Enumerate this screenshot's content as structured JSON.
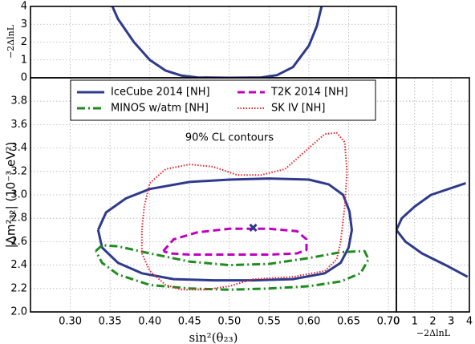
{
  "chart_data": [
    {
      "type": "contour",
      "xlabel": "sin²(θ₂₃)",
      "ylabel": "|Δm²₃₂| (10⁻³ eV²)",
      "annotation": "90% CL contours",
      "xlim": [
        0.25,
        0.71
      ],
      "ylim": [
        2.0,
        4.0
      ],
      "xticks": [
        {
          "value": 0.3,
          "label": "0.30"
        },
        0.35,
        {
          "value": 0.4,
          "label": "0.40"
        },
        0.45,
        {
          "value": 0.5,
          "label": "0.50"
        },
        0.55,
        {
          "value": 0.6,
          "label": "0.60"
        },
        0.65,
        {
          "value": 0.7,
          "label": "0.70"
        }
      ],
      "yticks": [
        {
          "value": 2,
          "label": "2.0"
        },
        2.2,
        2.4,
        2.6,
        2.8,
        {
          "value": 3,
          "label": "3.0"
        },
        3.2,
        3.4,
        3.6,
        3.8
      ],
      "grid": true,
      "legend": "upper center",
      "series": [
        {
          "name": "IceCube 2014 [NH]",
          "color": "#2e3a8c",
          "style": "solid",
          "x": [
            0.335,
            0.345,
            0.37,
            0.4,
            0.45,
            0.5,
            0.55,
            0.6,
            0.625,
            0.643,
            0.651,
            0.654,
            0.65,
            0.64,
            0.62,
            0.58,
            0.53,
            0.48,
            0.43,
            0.39,
            0.36,
            0.34,
            0.335
          ],
          "y": [
            2.7,
            2.85,
            2.97,
            3.05,
            3.11,
            3.13,
            3.14,
            3.13,
            3.09,
            3.0,
            2.86,
            2.7,
            2.55,
            2.42,
            2.33,
            2.28,
            2.27,
            2.27,
            2.28,
            2.33,
            2.42,
            2.55,
            2.7
          ]
        },
        {
          "name": "T2K 2014 [NH]",
          "color": "#c000c0",
          "style": "dashed",
          "x": [
            0.417,
            0.43,
            0.46,
            0.5,
            0.55,
            0.585,
            0.597,
            0.597,
            0.585,
            0.55,
            0.5,
            0.45,
            0.425,
            0.417
          ],
          "y": [
            2.52,
            2.62,
            2.68,
            2.71,
            2.71,
            2.69,
            2.62,
            2.53,
            2.5,
            2.49,
            2.49,
            2.49,
            2.5,
            2.52
          ]
        },
        {
          "name": "MINOS w/atm [NH]",
          "color": "#1e8c1e",
          "style": "dashdot",
          "x": [
            0.332,
            0.34,
            0.36,
            0.4,
            0.45,
            0.5,
            0.55,
            0.6,
            0.64,
            0.67,
            0.675,
            0.665,
            0.64,
            0.6,
            0.55,
            0.5,
            0.45,
            0.4,
            0.36,
            0.34,
            0.332
          ],
          "y": [
            2.52,
            2.57,
            2.56,
            2.5,
            2.43,
            2.4,
            2.41,
            2.46,
            2.51,
            2.52,
            2.45,
            2.33,
            2.26,
            2.22,
            2.2,
            2.19,
            2.2,
            2.23,
            2.32,
            2.42,
            2.52
          ]
        },
        {
          "name": "SK IV [NH]",
          "color": "#e8202a",
          "style": "dotted",
          "x": [
            0.39,
            0.393,
            0.4,
            0.42,
            0.45,
            0.48,
            0.51,
            0.54,
            0.57,
            0.6,
            0.62,
            0.635,
            0.645,
            0.648,
            0.645,
            0.64,
            0.635,
            0.62,
            0.58,
            0.53,
            0.5,
            0.47,
            0.44,
            0.42,
            0.4,
            0.39,
            0.39
          ],
          "y": [
            2.7,
            2.9,
            3.1,
            3.22,
            3.26,
            3.24,
            3.17,
            3.17,
            3.22,
            3.4,
            3.52,
            3.53,
            3.45,
            3.2,
            2.9,
            2.6,
            2.45,
            2.35,
            2.3,
            2.28,
            2.22,
            2.19,
            2.19,
            2.23,
            2.35,
            2.5,
            2.7
          ]
        }
      ],
      "best_fit": {
        "x": 0.53,
        "y": 2.72,
        "color": "#2e3a8c"
      }
    },
    {
      "type": "line",
      "ylabel": "−2ΔlnL",
      "xlim": [
        0.25,
        0.71
      ],
      "ylim": [
        0,
        4
      ],
      "yticks": [
        0,
        1,
        2,
        3,
        4
      ],
      "grid": true,
      "color": "#2e3a8c",
      "x": [
        0.353,
        0.36,
        0.38,
        0.4,
        0.42,
        0.44,
        0.46,
        0.5,
        0.54,
        0.56,
        0.58,
        0.6,
        0.61,
        0.616
      ],
      "values": [
        4,
        3.3,
        2.0,
        1.0,
        0.4,
        0.12,
        0.02,
        0,
        0.02,
        0.15,
        0.6,
        1.8,
        2.9,
        4
      ]
    },
    {
      "type": "line",
      "orientation": "horizontal",
      "xlabel": "−2ΔlnL",
      "xlim": [
        0,
        4
      ],
      "ylim": [
        2.0,
        4.0
      ],
      "xticks": [
        0,
        1,
        2,
        3,
        4
      ],
      "grid": true,
      "color": "#2e3a8c",
      "y": [
        2.3,
        2.4,
        2.5,
        2.6,
        2.7,
        2.8,
        2.9,
        3.0,
        3.1
      ],
      "values": [
        3.9,
        2.7,
        1.4,
        0.5,
        0.0,
        0.3,
        1.0,
        1.9,
        3.8
      ]
    }
  ]
}
